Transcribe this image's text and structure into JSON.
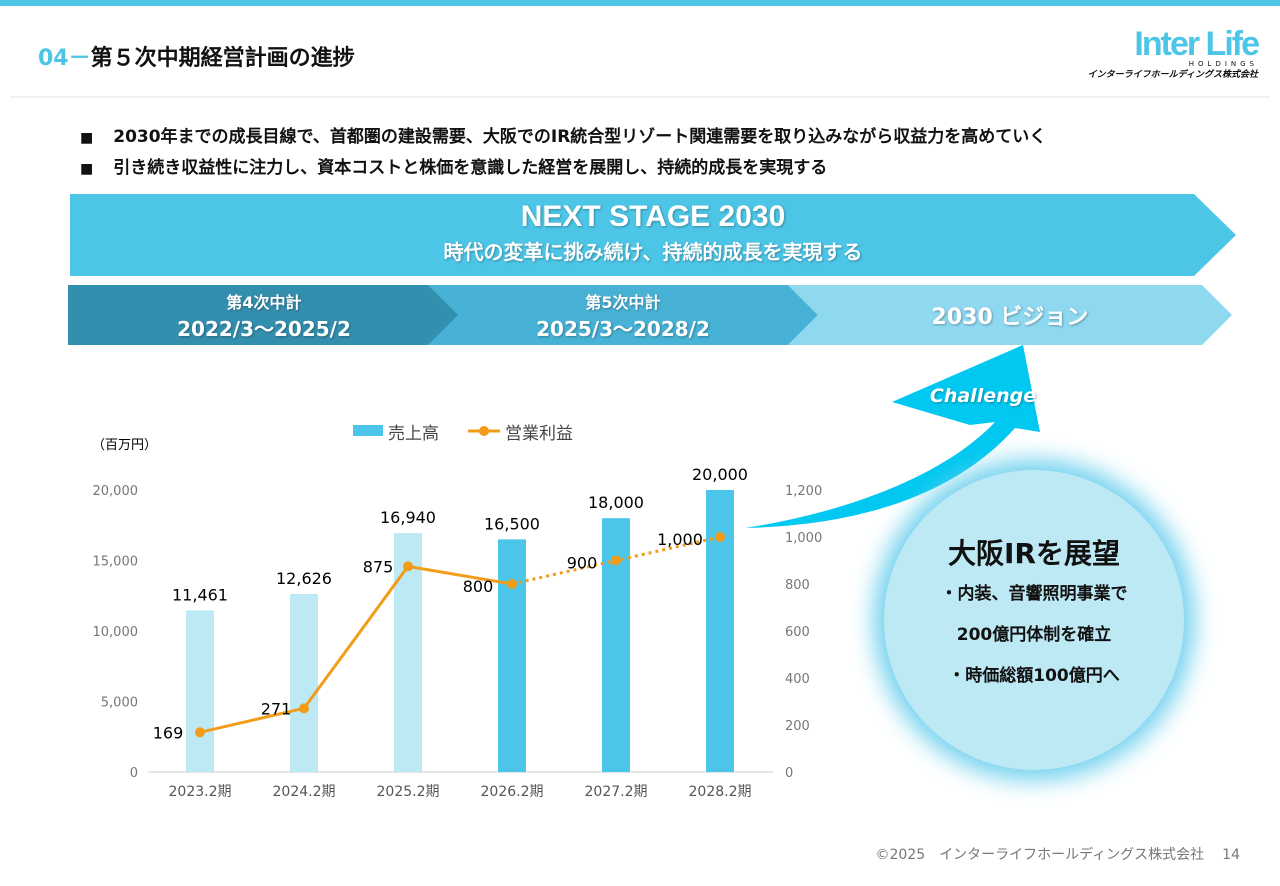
{
  "header": {
    "section_num": "04",
    "dash": "－",
    "title": "第５次中期経営計画の進捗",
    "logo_main": "Inter Life",
    "logo_sub": "HOLDINGS",
    "logo_jp": "インターライフホールディングス株式会社"
  },
  "bullets": [
    "2030年までの成長目線で、首都圏の建設需要、大阪でのIR統合型リゾート関連需要を取り込みながら収益力を高めていく",
    "引き続き収益性に注力し、資本コストと株価を意識した経営を展開し、持続的成長を実現する"
  ],
  "banner": {
    "title": "NEXT STAGE 2030",
    "subtitle": "時代の変革に挑み続け、持続的成長を実現する"
  },
  "stages": [
    {
      "title": "第4次中計",
      "dates": "2022/3～2025/2"
    },
    {
      "title": "第5次中計",
      "dates": "2025/3～2028/2"
    },
    {
      "title": "",
      "dates": "2030 ビジョン"
    }
  ],
  "challenge_label": "Challenge",
  "circle": {
    "title": "大阪IRを展望",
    "line1": "・内装、音響照明事業で",
    "line2": "200億円体制を確立",
    "line3": "・時価総額100億円へ"
  },
  "chart_data": {
    "type": "bar+line",
    "unit_label": "（百万円）",
    "categories": [
      "2023.2期",
      "2024.2期",
      "2025.2期",
      "2026.2期",
      "2027.2期",
      "2028.2期"
    ],
    "series": [
      {
        "name": "売上高",
        "type": "bar",
        "axis": "left",
        "values": [
          11461,
          12626,
          16940,
          16500,
          18000,
          20000
        ],
        "labels": [
          "11,461",
          "12,626",
          "16,940",
          "16,500",
          "18,000",
          "20,000"
        ],
        "color": "#4bc6e8",
        "actual_color": "#bde9f5"
      },
      {
        "name": "営業利益",
        "type": "line",
        "axis": "right",
        "values": [
          169,
          271,
          875,
          800,
          900,
          1000
        ],
        "labels": [
          "169",
          "271",
          "875",
          "800",
          "900",
          "1,000"
        ],
        "color": "#f29c1a",
        "forecast_from_index": 3
      }
    ],
    "left_ticks": [
      "0",
      "5,000",
      "10,000",
      "15,000",
      "20,000"
    ],
    "left_range": [
      0,
      20000
    ],
    "right_ticks": [
      "0",
      "200",
      "400",
      "600",
      "800",
      "1,000",
      "1,200"
    ],
    "right_range": [
      0,
      1200
    ]
  },
  "footer": {
    "copyright": "©2025　インターライフホールディングス株式会社",
    "page": "14"
  }
}
